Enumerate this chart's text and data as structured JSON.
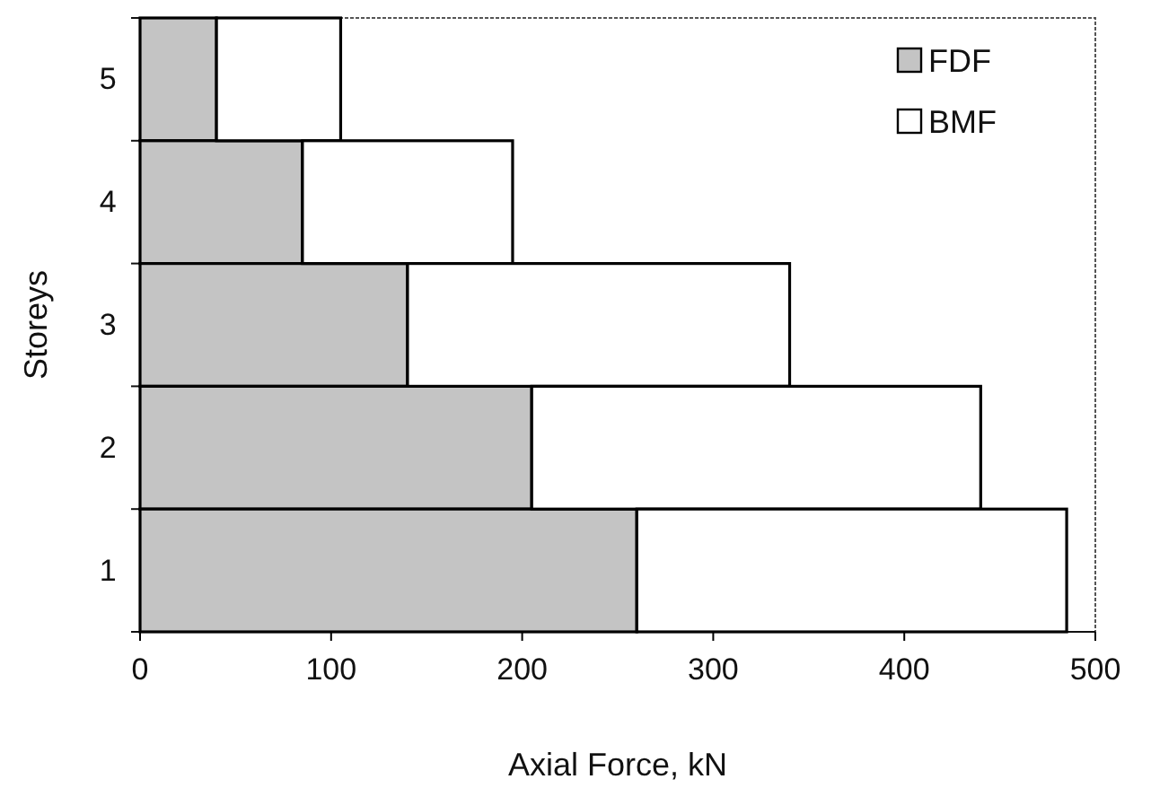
{
  "chart_data": {
    "type": "bar",
    "orientation": "horizontal",
    "stacked": true,
    "xlabel": "Axial Force, kN",
    "ylabel": "Storeys",
    "categories": [
      "5",
      "4",
      "3",
      "2",
      "1"
    ],
    "series": [
      {
        "name": "FDF",
        "color": "#c4c4c4",
        "values": [
          40,
          85,
          140,
          205,
          260
        ]
      },
      {
        "name": "BMF",
        "color": "#ffffff",
        "values": [
          65,
          110,
          200,
          235,
          225
        ]
      }
    ],
    "xlim": [
      0,
      500
    ],
    "xticks": [
      0,
      100,
      200,
      300,
      400,
      500
    ],
    "legend": "top right",
    "grid": false
  }
}
